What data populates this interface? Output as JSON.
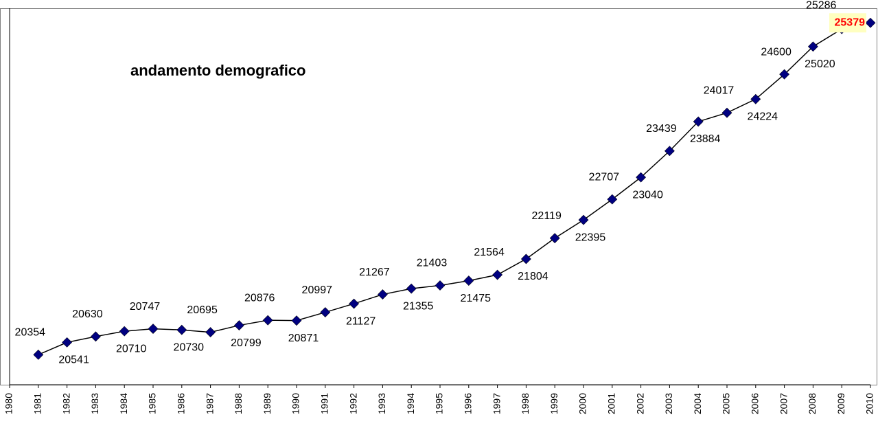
{
  "chart_data": {
    "type": "line",
    "title": "andamento demografico",
    "x": [
      1981,
      1982,
      1983,
      1984,
      1985,
      1986,
      1987,
      1988,
      1989,
      1990,
      1991,
      1992,
      1993,
      1994,
      1995,
      1996,
      1997,
      1998,
      1999,
      2000,
      2001,
      2002,
      2003,
      2004,
      2005,
      2006,
      2007,
      2008,
      2009,
      2010
    ],
    "series": [
      {
        "name": "andamento demografico",
        "color": "#000080",
        "values": [
          20354,
          20541,
          20630,
          20710,
          20747,
          20730,
          20695,
          20799,
          20876,
          20871,
          20997,
          21127,
          21267,
          21355,
          21403,
          21475,
          21564,
          21804,
          22119,
          22395,
          22707,
          23040,
          23439,
          23884,
          24017,
          24224,
          24600,
          25020,
          25286,
          25379
        ]
      }
    ],
    "xlim": [
      1980,
      2010
    ],
    "xticks": [
      1980,
      1981,
      1982,
      1983,
      1984,
      1985,
      1986,
      1987,
      1988,
      1989,
      1990,
      1991,
      1992,
      1993,
      1994,
      1995,
      1996,
      1997,
      1998,
      1999,
      2000,
      2001,
      2002,
      2003,
      2004,
      2005,
      2006,
      2007,
      2008,
      2009,
      2010
    ],
    "ylim": [
      19900,
      25600
    ],
    "grid": false
  }
}
